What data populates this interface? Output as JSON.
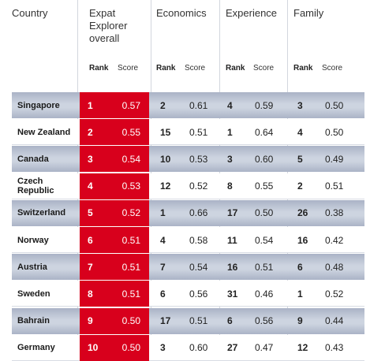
{
  "headers": {
    "country": "Country",
    "overall": "Expat Explorer overall",
    "economics": "Economics",
    "experience": "Experience",
    "family": "Family",
    "rank": "Rank",
    "score": "Score"
  },
  "colors": {
    "highlight": "#d8001c",
    "row_shade": "#c3cad8",
    "separator": "#d2d6de"
  },
  "chart_data": {
    "type": "table",
    "columns": [
      "Country",
      "Expat Explorer overall Rank",
      "Expat Explorer overall Score",
      "Economics Rank",
      "Economics Score",
      "Experience Rank",
      "Experience Score",
      "Family Rank",
      "Family Score"
    ],
    "rows": [
      {
        "country": "Singapore",
        "overall": {
          "rank": "1",
          "score": "0.57"
        },
        "economics": {
          "rank": "2",
          "score": "0.61"
        },
        "experience": {
          "rank": "4",
          "score": "0.59"
        },
        "family": {
          "rank": "3",
          "score": "0.50"
        }
      },
      {
        "country": "New Zealand",
        "overall": {
          "rank": "2",
          "score": "0.55"
        },
        "economics": {
          "rank": "15",
          "score": "0.51"
        },
        "experience": {
          "rank": "1",
          "score": "0.64"
        },
        "family": {
          "rank": "4",
          "score": "0.50"
        }
      },
      {
        "country": "Canada",
        "overall": {
          "rank": "3",
          "score": "0.54"
        },
        "economics": {
          "rank": "10",
          "score": "0.53"
        },
        "experience": {
          "rank": "3",
          "score": "0.60"
        },
        "family": {
          "rank": "5",
          "score": "0.49"
        }
      },
      {
        "country": "Czech Republic",
        "overall": {
          "rank": "4",
          "score": "0.53"
        },
        "economics": {
          "rank": "12",
          "score": "0.52"
        },
        "experience": {
          "rank": "8",
          "score": "0.55"
        },
        "family": {
          "rank": "2",
          "score": "0.51"
        }
      },
      {
        "country": "Switzerland",
        "overall": {
          "rank": "5",
          "score": "0.52"
        },
        "economics": {
          "rank": "1",
          "score": "0.66"
        },
        "experience": {
          "rank": "17",
          "score": "0.50"
        },
        "family": {
          "rank": "26",
          "score": "0.38"
        }
      },
      {
        "country": "Norway",
        "overall": {
          "rank": "6",
          "score": "0.51"
        },
        "economics": {
          "rank": "4",
          "score": "0.58"
        },
        "experience": {
          "rank": "11",
          "score": "0.54"
        },
        "family": {
          "rank": "16",
          "score": "0.42"
        }
      },
      {
        "country": "Austria",
        "overall": {
          "rank": "7",
          "score": "0.51"
        },
        "economics": {
          "rank": "7",
          "score": "0.54"
        },
        "experience": {
          "rank": "16",
          "score": "0.51"
        },
        "family": {
          "rank": "6",
          "score": "0.48"
        }
      },
      {
        "country": "Sweden",
        "overall": {
          "rank": "8",
          "score": "0.51"
        },
        "economics": {
          "rank": "6",
          "score": "0.56"
        },
        "experience": {
          "rank": "31",
          "score": "0.46"
        },
        "family": {
          "rank": "1",
          "score": "0.52"
        }
      },
      {
        "country": "Bahrain",
        "overall": {
          "rank": "9",
          "score": "0.50"
        },
        "economics": {
          "rank": "17",
          "score": "0.51"
        },
        "experience": {
          "rank": "6",
          "score": "0.56"
        },
        "family": {
          "rank": "9",
          "score": "0.44"
        }
      },
      {
        "country": "Germany",
        "overall": {
          "rank": "10",
          "score": "0.50"
        },
        "economics": {
          "rank": "3",
          "score": "0.60"
        },
        "experience": {
          "rank": "27",
          "score": "0.47"
        },
        "family": {
          "rank": "12",
          "score": "0.43"
        }
      }
    ]
  }
}
